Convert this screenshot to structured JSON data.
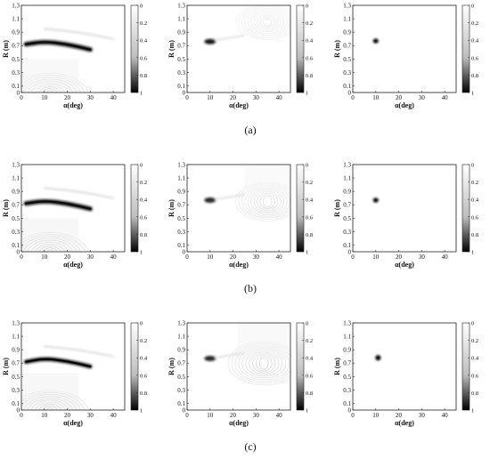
{
  "chart_data": [
    {
      "id": "a-1",
      "type": "heatmap",
      "row": "a",
      "panel": 1,
      "xlabel": "α(deg)",
      "ylabel": "R (m)",
      "xlim": [
        0,
        45
      ],
      "ylim": [
        0,
        1.3
      ],
      "x_ticks": [
        "0",
        "10",
        "20",
        "30",
        "40"
      ],
      "y_ticks": [
        "0",
        "0.1",
        "0.3",
        "0.5",
        "0.7",
        "0.9",
        "1.1",
        "1.3"
      ],
      "colorbar_ticks": [
        "0",
        "0.2",
        "0.4",
        "0.6",
        "0.8",
        "1"
      ],
      "colormap": "white-to-black",
      "features": [
        {
          "kind": "arc",
          "x": [
            2,
            10,
            20,
            30
          ],
          "y": [
            0.72,
            0.76,
            0.72,
            0.64
          ],
          "intensity": 0.85,
          "thickness": 0.07
        },
        {
          "kind": "ripples",
          "x_range": [
            0,
            25
          ],
          "y_range": [
            0,
            0.5
          ],
          "intensity": 0.25
        },
        {
          "kind": "faint_arc",
          "x": [
            10,
            25,
            40
          ],
          "y": [
            0.95,
            0.9,
            0.8
          ],
          "intensity": 0.15
        }
      ]
    },
    {
      "id": "a-2",
      "type": "heatmap",
      "row": "a",
      "panel": 2,
      "xlabel": "α(deg)",
      "ylabel": "R (m)",
      "xlim": [
        0,
        45
      ],
      "ylim": [
        0,
        1.3
      ],
      "x_ticks": [
        "0",
        "10",
        "20",
        "30",
        "40"
      ],
      "y_ticks": [
        "0",
        "0.1",
        "0.3",
        "0.5",
        "0.7",
        "0.9",
        "1.1",
        "1.3"
      ],
      "colorbar_ticks": [
        "0",
        "0.2",
        "0.4",
        "0.6",
        "0.8",
        "1"
      ],
      "colormap": "white-to-black",
      "features": [
        {
          "kind": "spot",
          "x": 10,
          "y": 0.76,
          "rx": 2.5,
          "ry": 0.04,
          "intensity": 0.9
        },
        {
          "kind": "ripples",
          "x_range": [
            25,
            45
          ],
          "y_range": [
            1.1,
            1.3
          ],
          "intensity": 0.12
        },
        {
          "kind": "faint_streak",
          "x": [
            12,
            25
          ],
          "y": [
            0.78,
            0.85
          ],
          "intensity": 0.12
        }
      ]
    },
    {
      "id": "a-3",
      "type": "heatmap",
      "row": "a",
      "panel": 3,
      "xlabel": "α(deg)",
      "ylabel": "R (m)",
      "xlim": [
        0,
        45
      ],
      "ylim": [
        0,
        1.3
      ],
      "x_ticks": [
        "0",
        "10",
        "20",
        "30",
        "40"
      ],
      "y_ticks": [
        "0",
        "0.1",
        "0.3",
        "0.5",
        "0.7",
        "0.9",
        "1.1",
        "1.3"
      ],
      "colorbar_ticks": [
        "0",
        "0.2",
        "0.4",
        "0.6",
        "0.8",
        "1"
      ],
      "colormap": "white-to-black",
      "features": [
        {
          "kind": "spot",
          "x": 10,
          "y": 0.77,
          "rx": 1.2,
          "ry": 0.035,
          "intensity": 1.0
        }
      ]
    },
    {
      "id": "b-1",
      "type": "heatmap",
      "row": "b",
      "panel": 1,
      "xlabel": "α(deg)",
      "ylabel": "R (m)",
      "xlim": [
        0,
        45
      ],
      "ylim": [
        0,
        1.3
      ],
      "x_ticks": [
        "0",
        "10",
        "20",
        "30",
        "40"
      ],
      "y_ticks": [
        "0",
        "0.1",
        "0.3",
        "0.5",
        "0.7",
        "0.9",
        "1.1",
        "1.3"
      ],
      "colorbar_ticks": [
        "0",
        "0.2",
        "0.4",
        "0.6",
        "0.8",
        "1"
      ],
      "colormap": "white-to-black",
      "features": [
        {
          "kind": "arc",
          "x": [
            2,
            10,
            20,
            30
          ],
          "y": [
            0.72,
            0.76,
            0.72,
            0.64
          ],
          "intensity": 0.85,
          "thickness": 0.07
        },
        {
          "kind": "ripples",
          "x_range": [
            0,
            25
          ],
          "y_range": [
            0,
            0.5
          ],
          "intensity": 0.3
        },
        {
          "kind": "faint_arc",
          "x": [
            10,
            25,
            40
          ],
          "y": [
            0.95,
            0.9,
            0.8
          ],
          "intensity": 0.15
        }
      ]
    },
    {
      "id": "b-2",
      "type": "heatmap",
      "row": "b",
      "panel": 2,
      "xlabel": "α(deg)",
      "ylabel": "R (m)",
      "xlim": [
        0,
        45
      ],
      "ylim": [
        0,
        1.3
      ],
      "x_ticks": [
        "0",
        "10",
        "20",
        "30",
        "40"
      ],
      "y_ticks": [
        "0",
        "0.1",
        "0.3",
        "0.5",
        "0.7",
        "0.9",
        "1.1",
        "1.3"
      ],
      "colorbar_ticks": [
        "0",
        "0.2",
        "0.4",
        "0.6",
        "0.8",
        "1"
      ],
      "colormap": "white-to-black",
      "features": [
        {
          "kind": "spot",
          "x": 10,
          "y": 0.77,
          "rx": 2.5,
          "ry": 0.04,
          "intensity": 0.85
        },
        {
          "kind": "ripples",
          "x_range": [
            25,
            45
          ],
          "y_range": [
            0.8,
            1.3
          ],
          "intensity": 0.18
        },
        {
          "kind": "faint_streak",
          "x": [
            12,
            25
          ],
          "y": [
            0.78,
            0.85
          ],
          "intensity": 0.12
        }
      ]
    },
    {
      "id": "b-3",
      "type": "heatmap",
      "row": "b",
      "panel": 3,
      "xlabel": "α(deg)",
      "ylabel": "R (m)",
      "xlim": [
        0,
        45
      ],
      "ylim": [
        0,
        1.3
      ],
      "x_ticks": [
        "0",
        "10",
        "20",
        "30",
        "40"
      ],
      "y_ticks": [
        "0",
        "0.1",
        "0.3",
        "0.5",
        "0.7",
        "0.9",
        "1.1",
        "1.3"
      ],
      "colorbar_ticks": [
        "0",
        "0.2",
        "0.4",
        "0.6",
        "0.8",
        "1"
      ],
      "colormap": "white-to-black",
      "features": [
        {
          "kind": "spot",
          "x": 10,
          "y": 0.77,
          "rx": 1.2,
          "ry": 0.035,
          "intensity": 1.0
        }
      ]
    },
    {
      "id": "c-1",
      "type": "heatmap",
      "row": "c",
      "panel": 1,
      "xlabel": "α(deg)",
      "ylabel": "R (m)",
      "xlim": [
        0,
        45
      ],
      "ylim": [
        0,
        1.3
      ],
      "x_ticks": [
        "0",
        "10",
        "20",
        "30",
        "40"
      ],
      "y_ticks": [
        "0",
        "0.1",
        "0.3",
        "0.5",
        "0.7",
        "0.9",
        "1.1",
        "1.3"
      ],
      "colorbar_ticks": [
        "0",
        "0.2",
        "0.4",
        "0.6",
        "0.8",
        "1"
      ],
      "colormap": "white-to-black",
      "features": [
        {
          "kind": "arc",
          "x": [
            2,
            10,
            20,
            30
          ],
          "y": [
            0.72,
            0.77,
            0.73,
            0.65
          ],
          "intensity": 0.9,
          "thickness": 0.06
        },
        {
          "kind": "ripples",
          "x_range": [
            0,
            25
          ],
          "y_range": [
            0,
            0.55
          ],
          "intensity": 0.3
        },
        {
          "kind": "faint_arc",
          "x": [
            10,
            25,
            40
          ],
          "y": [
            0.95,
            0.9,
            0.8
          ],
          "intensity": 0.15
        }
      ]
    },
    {
      "id": "c-2",
      "type": "heatmap",
      "row": "c",
      "panel": 2,
      "xlabel": "α(deg)",
      "ylabel": "R (m)",
      "xlim": [
        0,
        45
      ],
      "ylim": [
        0,
        1.3
      ],
      "x_ticks": [
        "0",
        "10",
        "20",
        "30",
        "40"
      ],
      "y_ticks": [
        "0",
        "0.1",
        "0.3",
        "0.5",
        "0.7",
        "0.9",
        "1.1",
        "1.3"
      ],
      "colorbar_ticks": [
        "0",
        "0.2",
        "0.4",
        "0.6",
        "0.8",
        "1"
      ],
      "colormap": "white-to-black",
      "features": [
        {
          "kind": "spot",
          "x": 10,
          "y": 0.77,
          "rx": 2.5,
          "ry": 0.04,
          "intensity": 0.85
        },
        {
          "kind": "ripples",
          "x_range": [
            22,
            45
          ],
          "y_range": [
            0.75,
            1.3
          ],
          "intensity": 0.22
        },
        {
          "kind": "faint_streak",
          "x": [
            12,
            25
          ],
          "y": [
            0.78,
            0.85
          ],
          "intensity": 0.12
        }
      ]
    },
    {
      "id": "c-3",
      "type": "heatmap",
      "row": "c",
      "panel": 3,
      "xlabel": "α(deg)",
      "ylabel": "R (m)",
      "xlim": [
        0,
        45
      ],
      "ylim": [
        0,
        1.3
      ],
      "x_ticks": [
        "0",
        "10",
        "20",
        "30",
        "40"
      ],
      "y_ticks": [
        "0",
        "0.1",
        "0.3",
        "0.5",
        "0.7",
        "0.9",
        "1.1",
        "1.3"
      ],
      "colorbar_ticks": [
        "0",
        "0.2",
        "0.4",
        "0.6",
        "0.8",
        "1"
      ],
      "colormap": "white-to-black",
      "features": [
        {
          "kind": "spot",
          "x": 11,
          "y": 0.78,
          "rx": 1.2,
          "ry": 0.04,
          "intensity": 1.0
        }
      ]
    }
  ],
  "captions": {
    "a": "(a)",
    "b": "(b)",
    "c": "(c)"
  }
}
